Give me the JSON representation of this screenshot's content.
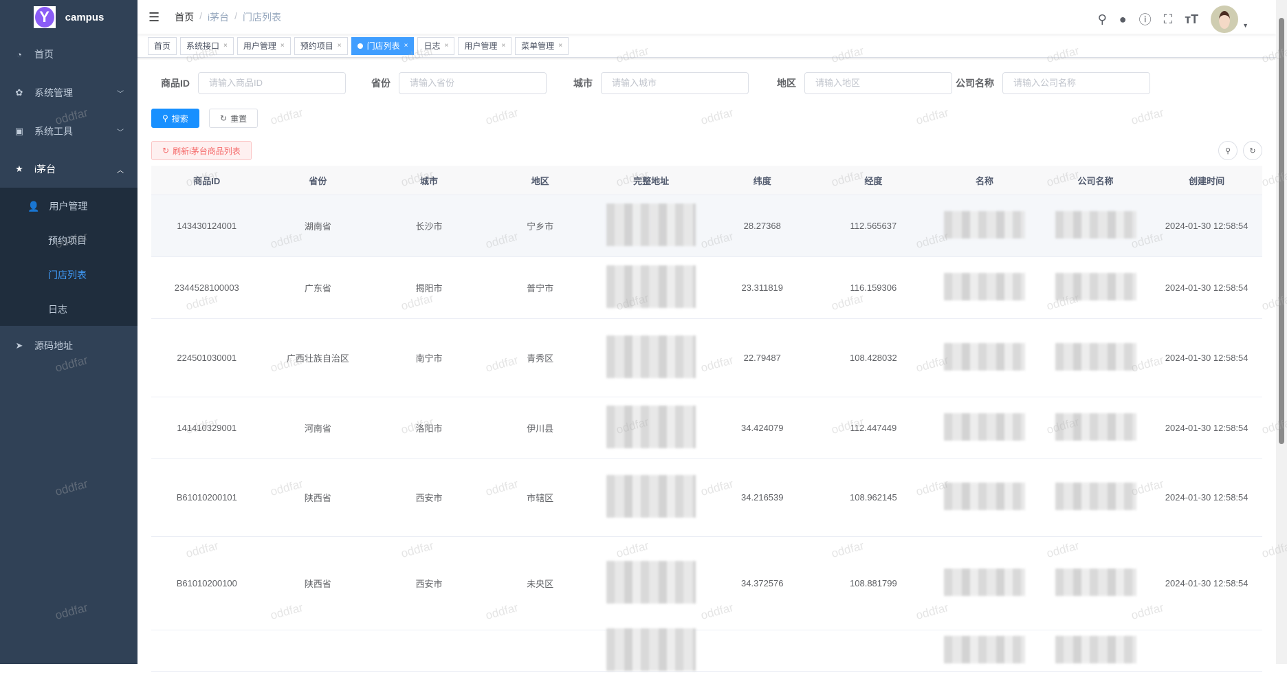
{
  "app": {
    "name": "campus",
    "logo_letter": "Y",
    "watermark": "oddfar"
  },
  "sidebar": {
    "items": [
      {
        "label": "首页",
        "icon": "dashboard-icon"
      },
      {
        "label": "系统管理",
        "icon": "gear-icon"
      },
      {
        "label": "系统工具",
        "icon": "toolbox-icon"
      },
      {
        "label": "i茅台",
        "icon": "star-icon"
      },
      {
        "label": "源码地址",
        "icon": "send-icon"
      }
    ],
    "sub": [
      {
        "label": "用户管理",
        "icon": "user-icon"
      },
      {
        "label": "预约项目"
      },
      {
        "label": "门店列表",
        "active": true
      },
      {
        "label": "日志"
      }
    ]
  },
  "header": {
    "breadcrumb": [
      "首页",
      "i茅台",
      "门店列表"
    ]
  },
  "tags": [
    {
      "label": "首页"
    },
    {
      "label": "系统接口"
    },
    {
      "label": "用户管理"
    },
    {
      "label": "预约项目"
    },
    {
      "label": "门店列表",
      "active": true
    },
    {
      "label": "日志"
    },
    {
      "label": "用户管理"
    },
    {
      "label": "菜单管理"
    }
  ],
  "form": {
    "fields": [
      {
        "label": "商品ID",
        "placeholder": "请输入商品ID"
      },
      {
        "label": "省份",
        "placeholder": "请输入省份"
      },
      {
        "label": "城市",
        "placeholder": "请输入城市"
      },
      {
        "label": "地区",
        "placeholder": "请输入地区"
      },
      {
        "label": "公司名称",
        "placeholder": "请输入公司名称"
      }
    ],
    "search": "搜索",
    "reset": "重置",
    "refresh": "刷新i茅台商品列表"
  },
  "colors": {
    "sidebar": "#304156",
    "primary": "#1890ff",
    "active_menu": "#409eff",
    "danger": "#f56c6c"
  },
  "table": {
    "columns": [
      "商品ID",
      "省份",
      "城市",
      "地区",
      "完整地址",
      "纬度",
      "经度",
      "名称",
      "公司名称",
      "创建时间"
    ],
    "rows": [
      {
        "id": "143430124001",
        "province": "湖南省",
        "city": "长沙市",
        "district": "宁乡市",
        "lat": "28.27368",
        "lng": "112.565637",
        "time": "2024-01-30 12:58:54"
      },
      {
        "id": "2344528100003",
        "province": "广东省",
        "city": "揭阳市",
        "district": "普宁市",
        "lat": "23.311819",
        "lng": "116.159306",
        "time": "2024-01-30 12:58:54"
      },
      {
        "id": "224501030001",
        "province": "广西壮族自治区",
        "city": "南宁市",
        "district": "青秀区",
        "lat": "22.79487",
        "lng": "108.428032",
        "time": "2024-01-30 12:58:54"
      },
      {
        "id": "141410329001",
        "province": "河南省",
        "city": "洛阳市",
        "district": "伊川县",
        "lat": "34.424079",
        "lng": "112.447449",
        "time": "2024-01-30 12:58:54"
      },
      {
        "id": "B61010200101",
        "province": "陕西省",
        "city": "西安市",
        "district": "市辖区",
        "lat": "34.216539",
        "lng": "108.962145",
        "time": "2024-01-30 12:58:54"
      },
      {
        "id": "B61010200100",
        "province": "陕西省",
        "city": "西安市",
        "district": "未央区",
        "lat": "34.372576",
        "lng": "108.881799",
        "time": "2024-01-30 12:58:54"
      },
      {
        "id": "",
        "province": "",
        "city": "",
        "district": "",
        "lat": "",
        "lng": "",
        "time": ""
      }
    ]
  }
}
